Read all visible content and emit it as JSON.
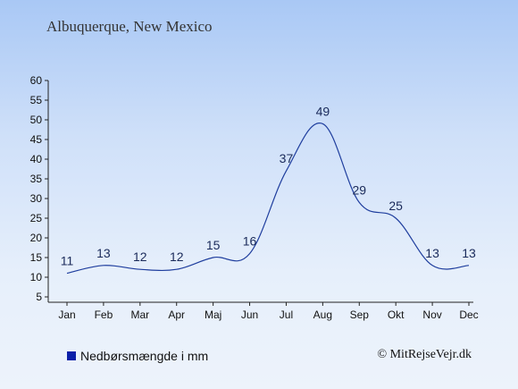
{
  "chart_data": {
    "type": "line",
    "title": "Albuquerque, New Mexico",
    "categories": [
      "Jan",
      "Feb",
      "Mar",
      "Apr",
      "Maj",
      "Jun",
      "Jul",
      "Aug",
      "Sep",
      "Okt",
      "Nov",
      "Dec"
    ],
    "series": [
      {
        "name": "Nedbørsmængde i mm",
        "values": [
          11,
          13,
          12,
          12,
          15,
          16,
          37,
          49,
          29,
          25,
          13,
          13
        ]
      }
    ],
    "yticks": [
      "5",
      "10",
      "15",
      "20",
      "25",
      "30",
      "35",
      "40",
      "45",
      "50",
      "55",
      "60"
    ],
    "ylim": [
      5,
      60
    ],
    "xlabel": "",
    "ylabel": "",
    "grid": false,
    "legend_position": "bottom-left",
    "line_color": "#1f3e9e",
    "legend_color": "#0a1fa8"
  },
  "credit": "© MitRejseVejr.dk"
}
